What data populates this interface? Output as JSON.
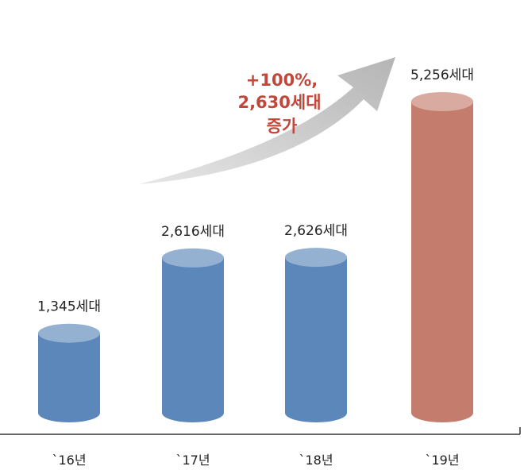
{
  "chart_data": {
    "type": "bar",
    "style": "3d-cylinder",
    "categories": [
      "`16년",
      "`17년",
      "`18년",
      "`19년"
    ],
    "values": [
      1345,
      2616,
      2626,
      5256
    ],
    "data_labels": [
      "1,345세대",
      "2,616세대",
      "2,626세대",
      "5,256세대"
    ],
    "colors": [
      "#5b87ba",
      "#5b87ba",
      "#5b87ba",
      "#c47d6d"
    ],
    "annotation": {
      "lines": [
        "+100%,",
        "2,630세대",
        "증가"
      ],
      "color": "#c0473a",
      "arrow": "gray-curved-up-right"
    },
    "title": "",
    "xlabel": "",
    "ylabel": "",
    "ylim": [
      0,
      5256
    ],
    "grid": false
  }
}
